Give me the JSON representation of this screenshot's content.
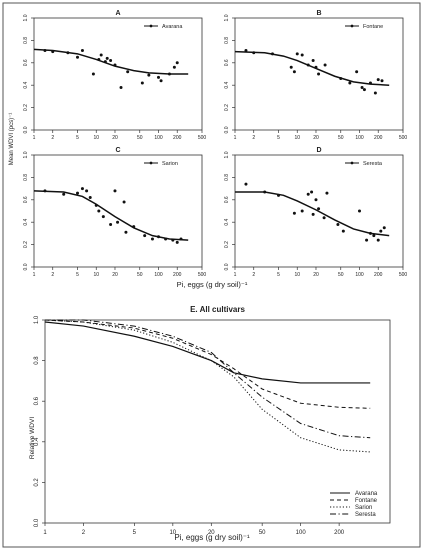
{
  "top_xlabel": "Pi, eggs (g dry soil)⁻¹",
  "top_ylabel": "Mean WDVI (pcs)⁻¹",
  "bottom_xlabel": "Pi, eggs  (g dry soil)⁻¹",
  "bottom_ylabel": "Relative WDVI",
  "chart_data": [
    {
      "type": "scatter",
      "panel": "A",
      "title": "A",
      "legend": [
        "Avarana"
      ],
      "legend_position": "top-right",
      "x_scale": "log",
      "xlim": [
        1,
        500
      ],
      "ylim": [
        0.0,
        1.0
      ],
      "x_ticks": [
        1,
        2,
        5,
        10,
        20,
        50,
        100,
        200,
        500
      ],
      "y_ticks": [
        0.0,
        0.2,
        0.4,
        0.6,
        0.8,
        1.0
      ],
      "points": [
        [
          1.5,
          0.71
        ],
        [
          2.0,
          0.7
        ],
        [
          3.5,
          0.69
        ],
        [
          5.0,
          0.65
        ],
        [
          6.0,
          0.71
        ],
        [
          9.0,
          0.5
        ],
        [
          11.0,
          0.63
        ],
        [
          12.0,
          0.67
        ],
        [
          14.0,
          0.61
        ],
        [
          15.0,
          0.64
        ],
        [
          17.0,
          0.62
        ],
        [
          20.0,
          0.58
        ],
        [
          25.0,
          0.38
        ],
        [
          32.0,
          0.52
        ],
        [
          55.0,
          0.42
        ],
        [
          70.0,
          0.49
        ],
        [
          100.0,
          0.47
        ],
        [
          110.0,
          0.44
        ],
        [
          150.0,
          0.5
        ],
        [
          180.0,
          0.56
        ],
        [
          200.0,
          0.6
        ]
      ],
      "curve": [
        [
          1.0,
          0.72
        ],
        [
          2.0,
          0.71
        ],
        [
          5.0,
          0.68
        ],
        [
          10.0,
          0.63
        ],
        [
          20.0,
          0.57
        ],
        [
          40.0,
          0.53
        ],
        [
          70.0,
          0.51
        ],
        [
          150.0,
          0.5
        ],
        [
          300.0,
          0.5
        ]
      ]
    },
    {
      "type": "scatter",
      "panel": "B",
      "title": "B",
      "legend": [
        "Fontane"
      ],
      "legend_position": "top-right",
      "x_scale": "log",
      "xlim": [
        1,
        500
      ],
      "ylim": [
        0.0,
        1.0
      ],
      "x_ticks": [
        1,
        2,
        5,
        10,
        20,
        50,
        100,
        200,
        500
      ],
      "y_ticks": [
        0.0,
        0.2,
        0.4,
        0.6,
        0.8,
        1.0
      ],
      "points": [
        [
          1.5,
          0.71
        ],
        [
          2.0,
          0.69
        ],
        [
          4.0,
          0.68
        ],
        [
          8.0,
          0.56
        ],
        [
          9.0,
          0.52
        ],
        [
          10.0,
          0.68
        ],
        [
          12.0,
          0.67
        ],
        [
          15.0,
          0.58
        ],
        [
          18.0,
          0.62
        ],
        [
          20.0,
          0.56
        ],
        [
          22.0,
          0.5
        ],
        [
          28.0,
          0.58
        ],
        [
          50.0,
          0.46
        ],
        [
          70.0,
          0.42
        ],
        [
          90.0,
          0.52
        ],
        [
          110.0,
          0.38
        ],
        [
          120.0,
          0.36
        ],
        [
          150.0,
          0.42
        ],
        [
          180.0,
          0.33
        ],
        [
          200.0,
          0.45
        ],
        [
          230.0,
          0.44
        ]
      ],
      "curve": [
        [
          1.0,
          0.7
        ],
        [
          3.0,
          0.69
        ],
        [
          6.0,
          0.66
        ],
        [
          10.0,
          0.62
        ],
        [
          20.0,
          0.55
        ],
        [
          40.0,
          0.48
        ],
        [
          80.0,
          0.43
        ],
        [
          150.0,
          0.41
        ],
        [
          300.0,
          0.4
        ]
      ]
    },
    {
      "type": "scatter",
      "panel": "C",
      "title": "C",
      "legend": [
        "Sarion"
      ],
      "legend_position": "top-right",
      "x_scale": "log",
      "xlim": [
        1,
        500
      ],
      "ylim": [
        0.0,
        1.0
      ],
      "x_ticks": [
        1,
        2,
        5,
        10,
        20,
        50,
        100,
        200,
        500
      ],
      "y_ticks": [
        0.0,
        0.2,
        0.4,
        0.6,
        0.8,
        1.0
      ],
      "points": [
        [
          1.5,
          0.68
        ],
        [
          3.0,
          0.65
        ],
        [
          5.0,
          0.66
        ],
        [
          6.0,
          0.7
        ],
        [
          7.0,
          0.68
        ],
        [
          8.0,
          0.62
        ],
        [
          10.0,
          0.55
        ],
        [
          11.0,
          0.5
        ],
        [
          13.0,
          0.45
        ],
        [
          17.0,
          0.38
        ],
        [
          20.0,
          0.68
        ],
        [
          22.0,
          0.4
        ],
        [
          28.0,
          0.58
        ],
        [
          30.0,
          0.31
        ],
        [
          40.0,
          0.36
        ],
        [
          60.0,
          0.28
        ],
        [
          80.0,
          0.25
        ],
        [
          100.0,
          0.27
        ],
        [
          130.0,
          0.25
        ],
        [
          170.0,
          0.24
        ],
        [
          200.0,
          0.22
        ],
        [
          230.0,
          0.25
        ]
      ],
      "curve": [
        [
          1.0,
          0.68
        ],
        [
          3.0,
          0.67
        ],
        [
          6.0,
          0.63
        ],
        [
          10.0,
          0.56
        ],
        [
          20.0,
          0.45
        ],
        [
          40.0,
          0.35
        ],
        [
          80.0,
          0.28
        ],
        [
          150.0,
          0.25
        ],
        [
          300.0,
          0.24
        ]
      ]
    },
    {
      "type": "scatter",
      "panel": "D",
      "title": "D",
      "legend": [
        "Seresta"
      ],
      "legend_position": "top-right",
      "x_scale": "log",
      "xlim": [
        1,
        500
      ],
      "ylim": [
        0.0,
        1.0
      ],
      "x_ticks": [
        1,
        2,
        5,
        10,
        20,
        50,
        100,
        200,
        500
      ],
      "y_ticks": [
        0.0,
        0.2,
        0.4,
        0.6,
        0.8,
        1.0
      ],
      "points": [
        [
          1.5,
          0.74
        ],
        [
          3.0,
          0.67
        ],
        [
          5.0,
          0.64
        ],
        [
          9.0,
          0.48
        ],
        [
          12.0,
          0.5
        ],
        [
          15.0,
          0.65
        ],
        [
          17.0,
          0.67
        ],
        [
          18.0,
          0.47
        ],
        [
          20.0,
          0.6
        ],
        [
          22.0,
          0.52
        ],
        [
          27.0,
          0.44
        ],
        [
          30.0,
          0.66
        ],
        [
          45.0,
          0.38
        ],
        [
          55.0,
          0.32
        ],
        [
          100.0,
          0.5
        ],
        [
          130.0,
          0.24
        ],
        [
          150.0,
          0.3
        ],
        [
          170.0,
          0.28
        ],
        [
          200.0,
          0.24
        ],
        [
          220.0,
          0.32
        ],
        [
          250.0,
          0.35
        ]
      ],
      "curve": [
        [
          1.0,
          0.67
        ],
        [
          3.0,
          0.67
        ],
        [
          6.0,
          0.64
        ],
        [
          10.0,
          0.59
        ],
        [
          20.0,
          0.51
        ],
        [
          40.0,
          0.42
        ],
        [
          80.0,
          0.34
        ],
        [
          150.0,
          0.3
        ],
        [
          300.0,
          0.28
        ]
      ]
    },
    {
      "type": "line",
      "panel": "E",
      "title": "E. All cultivars",
      "x_scale": "log",
      "xlim": [
        1,
        500
      ],
      "ylim": [
        0.0,
        1.0
      ],
      "x_ticks": [
        1,
        2,
        5,
        10,
        20,
        50,
        100,
        200
      ],
      "y_ticks": [
        0.0,
        0.2,
        0.4,
        0.6,
        0.8,
        1.0
      ],
      "legend_position": "bottom-right",
      "series": [
        {
          "name": "Avarana",
          "style": "solid",
          "points": [
            [
              1,
              0.99
            ],
            [
              2,
              0.97
            ],
            [
              5,
              0.92
            ],
            [
              10,
              0.87
            ],
            [
              20,
              0.8
            ],
            [
              30,
              0.74
            ],
            [
              50,
              0.71
            ],
            [
              100,
              0.69
            ],
            [
              200,
              0.69
            ],
            [
              350,
              0.69
            ]
          ]
        },
        {
          "name": "Fontane",
          "style": "dashed",
          "points": [
            [
              1,
              1.0
            ],
            [
              2,
              0.99
            ],
            [
              5,
              0.96
            ],
            [
              10,
              0.91
            ],
            [
              20,
              0.83
            ],
            [
              30,
              0.76
            ],
            [
              50,
              0.66
            ],
            [
              100,
              0.59
            ],
            [
              200,
              0.57
            ],
            [
              350,
              0.565
            ]
          ]
        },
        {
          "name": "Sarion",
          "style": "dotted",
          "points": [
            [
              1,
              1.0
            ],
            [
              2,
              0.99
            ],
            [
              5,
              0.95
            ],
            [
              10,
              0.89
            ],
            [
              20,
              0.8
            ],
            [
              30,
              0.72
            ],
            [
              50,
              0.56
            ],
            [
              100,
              0.42
            ],
            [
              200,
              0.36
            ],
            [
              350,
              0.35
            ]
          ]
        },
        {
          "name": "Seresta",
          "style": "dashdot",
          "points": [
            [
              1,
              1.0
            ],
            [
              2,
              1.0
            ],
            [
              5,
              0.97
            ],
            [
              10,
              0.92
            ],
            [
              20,
              0.84
            ],
            [
              30,
              0.74
            ],
            [
              50,
              0.62
            ],
            [
              100,
              0.49
            ],
            [
              200,
              0.43
            ],
            [
              350,
              0.42
            ]
          ]
        }
      ]
    }
  ]
}
